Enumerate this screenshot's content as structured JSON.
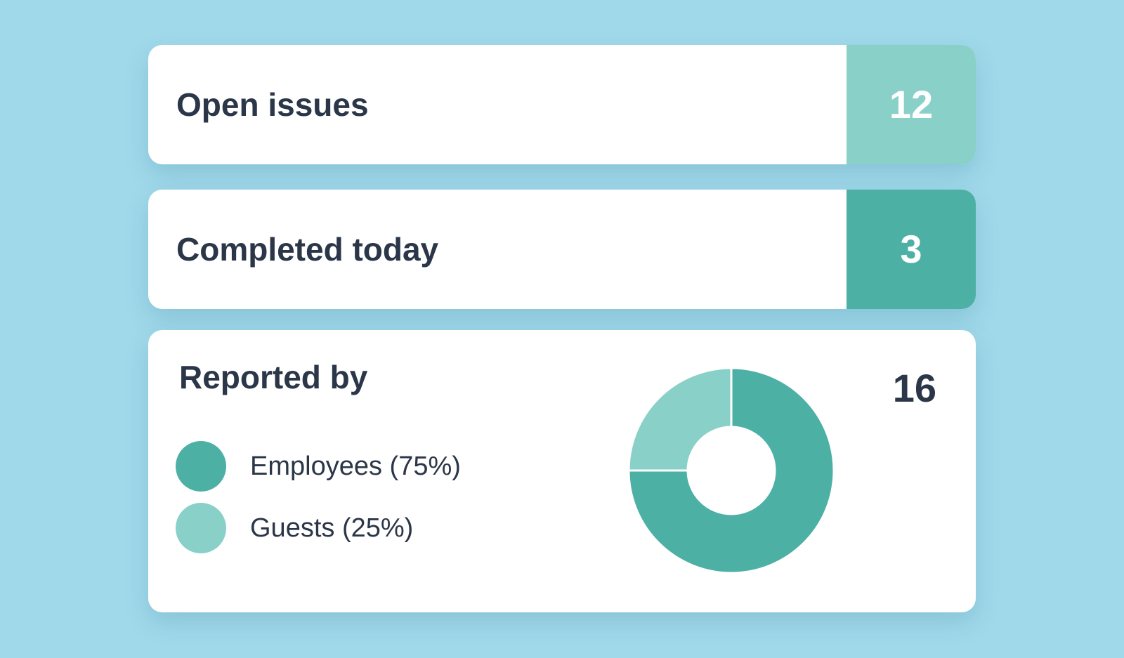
{
  "cards": {
    "open_issues": {
      "label": "Open issues",
      "value": "12",
      "color": "#89d0c9"
    },
    "completed_today": {
      "label": "Completed today",
      "value": "3",
      "color": "#4db0a5"
    }
  },
  "reported_by": {
    "title": "Reported by",
    "total": "16",
    "legend": [
      {
        "label": "Employees (75%)",
        "color": "#4db0a5"
      },
      {
        "label": "Guests (25%)",
        "color": "#89d0c9"
      }
    ]
  },
  "chart_data": {
    "type": "pie",
    "categories": [
      "Employees",
      "Guests"
    ],
    "values": [
      75,
      25
    ],
    "colors": [
      "#4db0a5",
      "#89d0c9"
    ],
    "donut": true
  }
}
